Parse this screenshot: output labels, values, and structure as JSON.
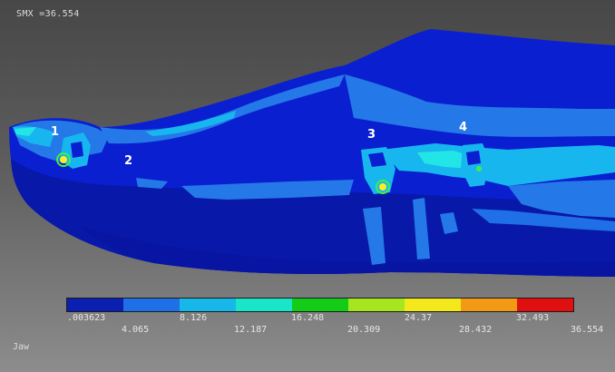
{
  "viewport": {
    "smx_label": "SMX =36.554",
    "view_name": "Jaw"
  },
  "nodes": [
    {
      "id": "node-1",
      "label": "1"
    },
    {
      "id": "node-2",
      "label": "2"
    },
    {
      "id": "node-3",
      "label": "3"
    },
    {
      "id": "node-4",
      "label": "4"
    }
  ],
  "legend": {
    "colors": [
      "#0b1fb0",
      "#1f6fe6",
      "#16b8ea",
      "#19e6c9",
      "#12cc18",
      "#a6e61e",
      "#f2e81a",
      "#f29a14",
      "#e01010"
    ],
    "ticks": [
      ".003623",
      "4.065",
      "8.126",
      "12.187",
      "16.248",
      "20.309",
      "24.37",
      "28.432",
      "32.493",
      "36.554"
    ]
  },
  "colors": {
    "deep_blue": "#0a1fd0",
    "shadow_blue": "#0818a8",
    "mid_blue": "#2478e8",
    "light_blue": "#18b6ee",
    "cyan": "#22e6e6",
    "hot_green": "#44ee44",
    "hot_yellow": "#ffee22"
  }
}
